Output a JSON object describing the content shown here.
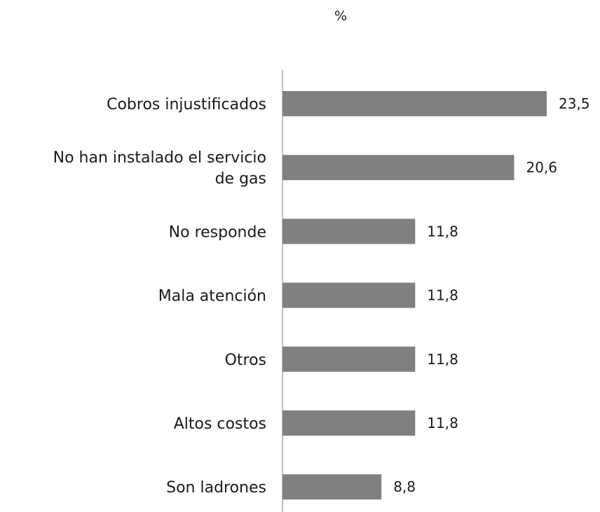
{
  "chart_data": {
    "type": "bar",
    "orientation": "horizontal",
    "title": "%",
    "categories": [
      "Cobros injustificados",
      "No han instalado el servicio de gas",
      "No responde",
      "Mala atención",
      "Otros",
      "Altos costos",
      "Son ladrones"
    ],
    "category_lines": [
      [
        "Cobros injustificados"
      ],
      [
        "No han instalado el servicio",
        "de gas"
      ],
      [
        "No responde"
      ],
      [
        "Mala atención"
      ],
      [
        "Otros"
      ],
      [
        "Altos costos"
      ],
      [
        "Son ladrones"
      ]
    ],
    "values": [
      23.5,
      20.6,
      11.8,
      11.8,
      11.8,
      11.8,
      8.8
    ],
    "value_labels": [
      "23,5",
      "20,6",
      "11,8",
      "11,8",
      "11,8",
      "11,8",
      "8,8"
    ],
    "xlim": [
      0,
      23.5
    ],
    "grid": false,
    "legend": "none",
    "bar_color": "#808080",
    "axis_color": "#808080"
  }
}
